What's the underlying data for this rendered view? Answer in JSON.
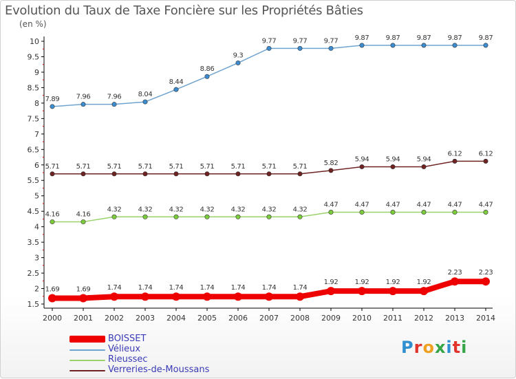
{
  "title": "Evolution du Taux de Taxe Foncière sur les Propriétés Bâties",
  "subtitle": "(en %)",
  "logo": {
    "text": "Proxiti",
    "colors": [
      "#2f8fd0",
      "#e0342c",
      "#f0a020",
      "#35a645",
      "#2f8fd0",
      "#e0342c",
      "#35a645"
    ]
  },
  "chart_data": {
    "type": "line",
    "title": "Evolution du Taux de Taxe Foncière sur les Propriétés Bâties",
    "ylabel": "(en %)",
    "xlabel": "",
    "x": [
      "2000",
      "2001",
      "2002",
      "2003",
      "2004",
      "2005",
      "2006",
      "2007",
      "2008",
      "2009",
      "2010",
      "2011",
      "2012",
      "2013",
      "2014"
    ],
    "ylim": [
      1.5,
      10
    ],
    "yticks": [
      1.5,
      2,
      2.5,
      3,
      3.5,
      4,
      4.5,
      5,
      5.5,
      6,
      6.5,
      7,
      7.5,
      8,
      8.5,
      9,
      9.5,
      10
    ],
    "grid": false,
    "legend": "bottom-left",
    "series": [
      {
        "name": "Vélieux",
        "color": "#6fa3cf",
        "marker": "#3d8ccf",
        "values": [
          7.89,
          7.96,
          7.96,
          8.04,
          8.44,
          8.86,
          9.3,
          9.77,
          9.77,
          9.77,
          9.87,
          9.87,
          9.87,
          9.87,
          9.87
        ]
      },
      {
        "name": "Verreries-de-Moussans",
        "color": "#6e2222",
        "marker": "#6e2222",
        "values": [
          5.71,
          5.71,
          5.71,
          5.71,
          5.71,
          5.71,
          5.71,
          5.71,
          5.71,
          5.82,
          5.94,
          5.94,
          5.94,
          6.12,
          6.12
        ]
      },
      {
        "name": "Rieussec",
        "color": "#99d26a",
        "marker": "#7ccc3c",
        "values": [
          4.16,
          4.16,
          4.32,
          4.32,
          4.32,
          4.32,
          4.32,
          4.32,
          4.32,
          4.47,
          4.47,
          4.47,
          4.47,
          4.47,
          4.47
        ]
      },
      {
        "name": "BOISSET",
        "color": "#ee0000",
        "marker": "#ee0000",
        "values": [
          1.69,
          1.69,
          1.74,
          1.74,
          1.74,
          1.74,
          1.74,
          1.74,
          1.74,
          1.92,
          1.92,
          1.92,
          1.92,
          2.23,
          2.23
        ]
      }
    ],
    "legend_order": [
      "BOISSET",
      "Vélieux",
      "Rieussec",
      "Verreries-de-Moussans"
    ]
  }
}
